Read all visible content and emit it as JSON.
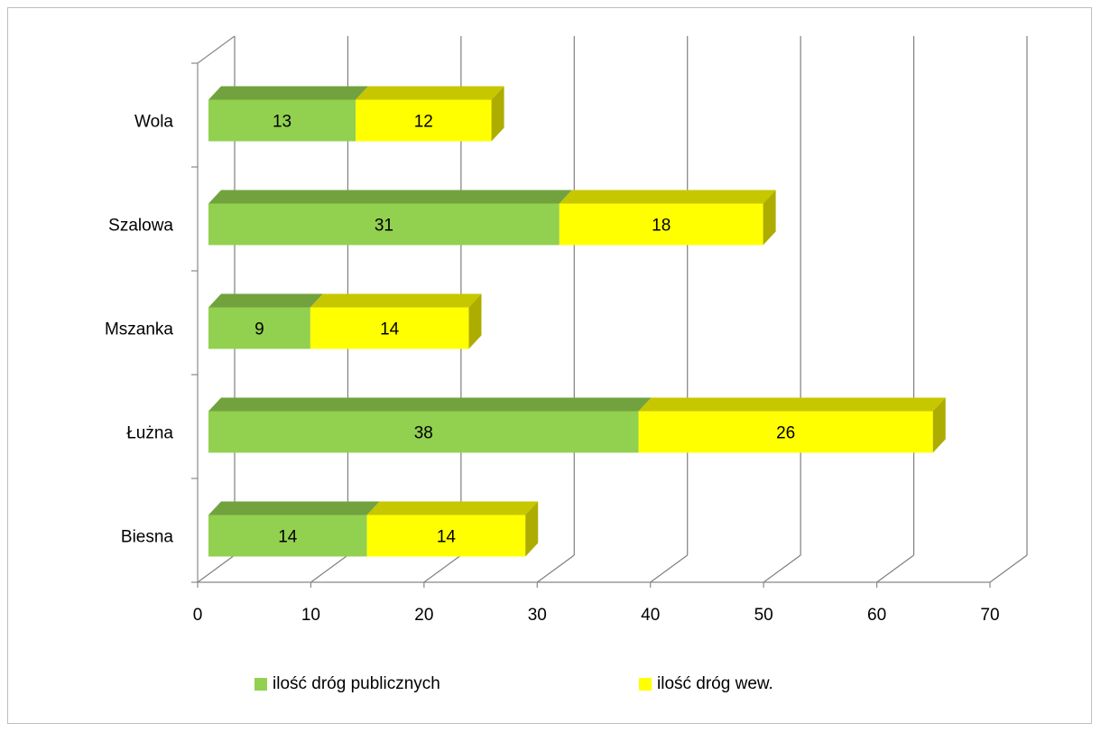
{
  "chart_data": {
    "type": "bar",
    "orientation": "horizontal",
    "stacked": true,
    "three_d": true,
    "categories": [
      "Biesna",
      "Łużna",
      "Mszanka",
      "Szalowa",
      "Wola"
    ],
    "series": [
      {
        "name": "ilość dróg publicznych",
        "values": [
          14,
          38,
          9,
          31,
          13
        ],
        "color": "#92d050"
      },
      {
        "name": "ilość dróg wew.",
        "values": [
          14,
          26,
          14,
          18,
          12
        ],
        "color": "#ffff00"
      }
    ],
    "x_ticks": [
      "0",
      "10",
      "20",
      "30",
      "40",
      "50",
      "60",
      "70"
    ],
    "xlim": [
      0,
      70
    ],
    "grid": true,
    "legend_position": "bottom"
  },
  "legend": {
    "public_label": "ilość dróg publicznych",
    "internal_label": "ilość dróg wew."
  }
}
